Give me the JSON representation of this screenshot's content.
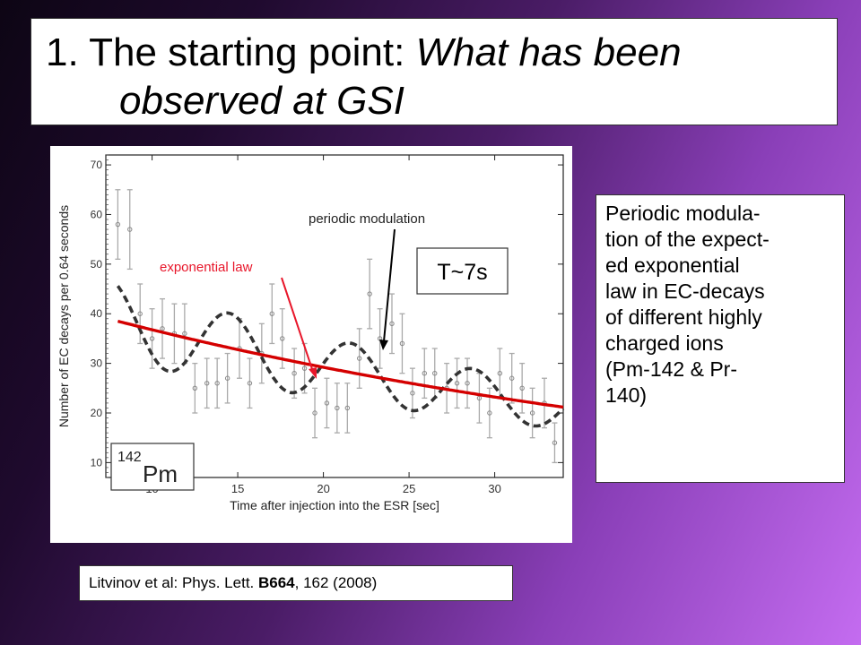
{
  "slide": {
    "title_number": "1.",
    "title_plain": "The starting point:",
    "title_italic_1": "What has been",
    "title_italic_2": "observed at GSI",
    "side_text": [
      "Periodic modula-",
      "tion of the expect-",
      "ed exponential",
      "law in EC-decays",
      "of different highly",
      "charged ions",
      "(Pm-142 & Pr-",
      "140)"
    ],
    "citation_pre": "Litvinov et al: Phys. Lett. ",
    "citation_bold": "B664",
    "citation_post": ", 162 (2008)"
  },
  "colors": {
    "exp_fit": "#d40000",
    "mod_fit": "#333333",
    "points": "#aaaaaa",
    "annotation_red": "#e8162a"
  },
  "chart_data": {
    "type": "scatter",
    "xlabel": "Time after injection into the ESR [sec]",
    "ylabel": "Number of EC decays per 0.64 seconds",
    "xlim": [
      7.3,
      34
    ],
    "ylim": [
      7,
      72
    ],
    "xticks": [
      10,
      15,
      20,
      25,
      30
    ],
    "yticks": [
      10,
      20,
      30,
      40,
      50,
      60,
      70
    ],
    "grid": false,
    "series": [
      {
        "values": [
          {
            "x": 8.0,
            "y": 58,
            "err": 7
          },
          {
            "x": 8.7,
            "y": 57,
            "err": 8
          },
          {
            "x": 9.3,
            "y": 40,
            "err": 6
          },
          {
            "x": 10.0,
            "y": 35,
            "err": 6
          },
          {
            "x": 10.6,
            "y": 37,
            "err": 6
          },
          {
            "x": 11.3,
            "y": 36,
            "err": 6
          },
          {
            "x": 11.9,
            "y": 36,
            "err": 6
          },
          {
            "x": 12.5,
            "y": 25,
            "err": 5
          },
          {
            "x": 13.2,
            "y": 26,
            "err": 5
          },
          {
            "x": 13.8,
            "y": 26,
            "err": 5
          },
          {
            "x": 14.4,
            "y": 27,
            "err": 5
          },
          {
            "x": 15.1,
            "y": 33,
            "err": 6
          },
          {
            "x": 15.7,
            "y": 26,
            "err": 5
          },
          {
            "x": 16.4,
            "y": 32,
            "err": 6
          },
          {
            "x": 17.0,
            "y": 40,
            "err": 6
          },
          {
            "x": 17.6,
            "y": 35,
            "err": 6
          },
          {
            "x": 18.3,
            "y": 28,
            "err": 5
          },
          {
            "x": 18.9,
            "y": 29,
            "err": 5
          },
          {
            "x": 19.5,
            "y": 20,
            "err": 5
          },
          {
            "x": 20.2,
            "y": 22,
            "err": 5
          },
          {
            "x": 20.8,
            "y": 21,
            "err": 5
          },
          {
            "x": 21.4,
            "y": 21,
            "err": 5
          },
          {
            "x": 22.1,
            "y": 31,
            "err": 6
          },
          {
            "x": 22.7,
            "y": 44,
            "err": 7
          },
          {
            "x": 23.3,
            "y": 35,
            "err": 6
          },
          {
            "x": 24.0,
            "y": 38,
            "err": 6
          },
          {
            "x": 24.6,
            "y": 34,
            "err": 6
          },
          {
            "x": 25.2,
            "y": 24,
            "err": 5
          },
          {
            "x": 25.9,
            "y": 28,
            "err": 5
          },
          {
            "x": 26.5,
            "y": 28,
            "err": 5
          },
          {
            "x": 27.2,
            "y": 25,
            "err": 5
          },
          {
            "x": 27.8,
            "y": 26,
            "err": 5
          },
          {
            "x": 28.4,
            "y": 26,
            "err": 5
          },
          {
            "x": 29.1,
            "y": 23,
            "err": 5
          },
          {
            "x": 29.7,
            "y": 20,
            "err": 5
          },
          {
            "x": 30.3,
            "y": 28,
            "err": 5
          },
          {
            "x": 31.0,
            "y": 27,
            "err": 5
          },
          {
            "x": 31.6,
            "y": 25,
            "err": 5
          },
          {
            "x": 32.2,
            "y": 20,
            "err": 5
          },
          {
            "x": 32.9,
            "y": 22,
            "err": 5
          },
          {
            "x": 33.5,
            "y": 14,
            "err": 4
          }
        ]
      }
    ],
    "fit_lines": [
      {
        "name": "exponential law",
        "style": "solid",
        "y0": 38.5,
        "decay_per_s": 0.023
      },
      {
        "name": "periodic modulation",
        "style": "dashed",
        "y0": 38.5,
        "decay_per_s": 0.023,
        "amplitude_frac": 0.21,
        "period_s": 7.1,
        "phase_rad": 0.5
      }
    ],
    "annotations": {
      "exponential_label": "exponential law",
      "modulation_label": "periodic modulation",
      "period_label": "T~7s",
      "inset_mass": "142",
      "inset_element": "Pm"
    }
  }
}
